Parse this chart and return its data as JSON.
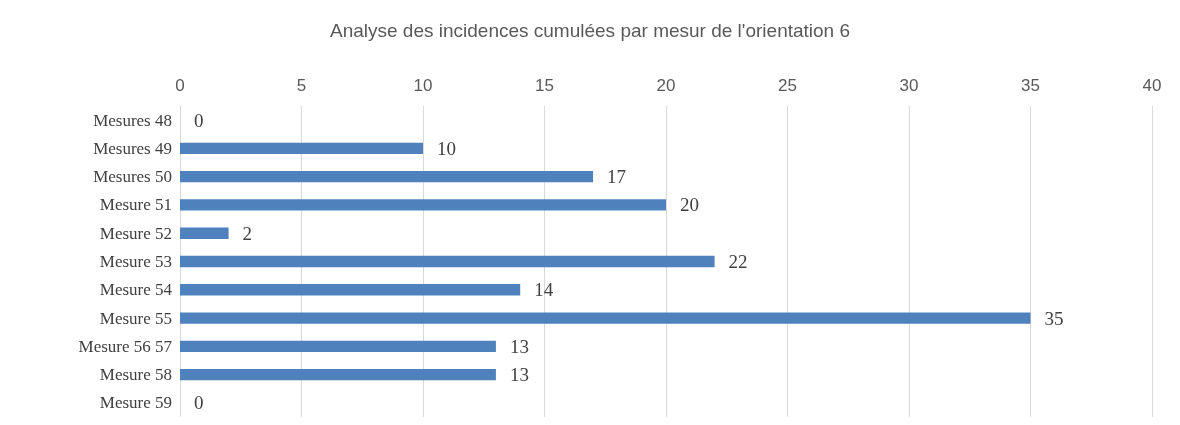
{
  "chart_data": {
    "type": "bar",
    "orientation": "horizontal",
    "title": "Analyse des incidences cumulées par mesur de l'orientation 6",
    "categories": [
      "Mesures 48",
      "Mesures 49",
      "Mesures 50",
      "Mesure 51",
      "Mesure 52",
      "Mesure 53",
      "Mesure 54",
      "Mesure 55",
      "Mesure 56 57",
      "Mesure 58",
      "Mesure 59"
    ],
    "values": [
      0,
      10,
      17,
      20,
      2,
      22,
      14,
      35,
      13,
      13,
      0
    ],
    "color": "#4f81bd",
    "xlim": [
      0,
      40
    ],
    "xticks": [
      0,
      5,
      10,
      15,
      20,
      25,
      30,
      35,
      40
    ],
    "grid": "x",
    "data_labels": true
  }
}
